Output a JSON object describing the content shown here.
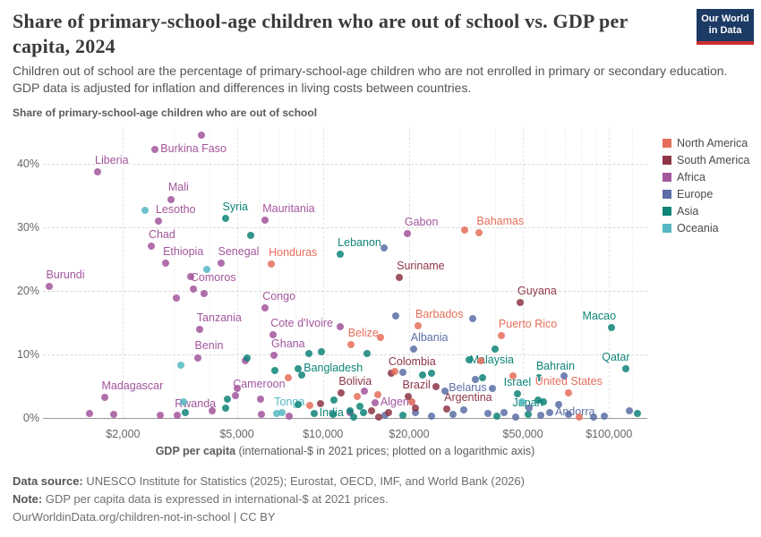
{
  "header": {
    "title": "Share of primary-school-age children who are out of school vs. GDP per capita, 2024",
    "subtitle": "Children out of school are the percentage of primary-school-age children who are not enrolled in primary or secondary education. GDP data is adjusted for inflation and differences in living costs between countries.",
    "logo": {
      "line1": "Our World",
      "line2": "in Data",
      "bg": "#1b3a64",
      "bar": "#cc2e2e"
    }
  },
  "footer": {
    "source_label": "Data source:",
    "source_text": " UNESCO Institute for Statistics (2025); Eurostat, OECD, IMF, and World Bank (2026)",
    "note_label": "Note:",
    "note_text": " GDP per capita data is expressed in international-$ at 2021 prices.",
    "url_line": "OurWorldinData.org/children-not-in-school | CC BY"
  },
  "chart_data": {
    "type": "scatter",
    "title": "Share of primary-school-age children who are out of school vs. GDP per capita, 2024",
    "ylabel": "Share of primary-school-age children who are out of school",
    "xlabel_bold": "GDP per capita",
    "xlabel_rest": " (international-$ in 2021 prices; plotted on a logarithmic axis)",
    "x_scale": "log",
    "x_domain": [
      1050,
      136000
    ],
    "y_domain": [
      0,
      45.3
    ],
    "grid": true,
    "legend_position": "right",
    "x_ticks": [
      {
        "value": 2000,
        "label": "$2,000"
      },
      {
        "value": 5000,
        "label": "$5,000"
      },
      {
        "value": 10000,
        "label": "$10,000"
      },
      {
        "value": 20000,
        "label": "$20,000"
      },
      {
        "value": 50000,
        "label": "$50,000"
      },
      {
        "value": 100000,
        "label": "$100,000"
      }
    ],
    "x_minor": [
      3000,
      4000,
      6000,
      7000,
      8000,
      9000,
      30000,
      40000,
      60000,
      70000,
      80000,
      90000,
      120000
    ],
    "y_ticks": [
      {
        "value": 0,
        "label": "0%"
      },
      {
        "value": 10,
        "label": "10%"
      },
      {
        "value": 20,
        "label": "20%"
      },
      {
        "value": 30,
        "label": "30%"
      },
      {
        "value": 40,
        "label": "40%"
      }
    ],
    "continent_colors": {
      "North America": "#e56e5a",
      "South America": "#8d3646",
      "Africa": "#a2559c",
      "Europe": "#5b6ea6",
      "Asia": "#0e8478",
      "Oceania": "#55b8c2"
    },
    "legend": [
      {
        "label": "North America"
      },
      {
        "label": "South America"
      },
      {
        "label": "Africa"
      },
      {
        "label": "Europe"
      },
      {
        "label": "Asia"
      },
      {
        "label": "Oceania"
      }
    ],
    "points": [
      {
        "name": "Burkina Faso",
        "continent": "Africa",
        "gdp": 2590,
        "share": 42.2,
        "lp": "right"
      },
      {
        "name": "Liberia",
        "continent": "Africa",
        "gdp": 1630,
        "share": 38.7,
        "lp": "above-right"
      },
      {
        "name": "Mali",
        "continent": "Africa",
        "gdp": 2940,
        "share": 34.4,
        "lp": "above-right"
      },
      {
        "name": "Lesotho",
        "continent": "Africa",
        "gdp": 2660,
        "share": 30.9,
        "lp": "above-right"
      },
      {
        "name": "Syria",
        "continent": "Asia",
        "gdp": 4550,
        "share": 31.4,
        "lp": "above-right"
      },
      {
        "name": "Mauritania",
        "continent": "Africa",
        "gdp": 6280,
        "share": 31.1,
        "lp": "above-right"
      },
      {
        "name": "Chad",
        "continent": "Africa",
        "gdp": 2510,
        "share": 27.0,
        "lp": "above-right"
      },
      {
        "name": "Ethiopia",
        "continent": "Africa",
        "gdp": 2820,
        "share": 24.3,
        "lp": "above-right"
      },
      {
        "name": "Senegal",
        "continent": "Africa",
        "gdp": 4390,
        "share": 24.3,
        "lp": "above-right"
      },
      {
        "name": "Honduras",
        "continent": "North America",
        "gdp": 6600,
        "share": 24.2,
        "lp": "above-right"
      },
      {
        "name": "Lebanon",
        "continent": "Asia",
        "gdp": 11500,
        "share": 25.7,
        "lp": "above-right"
      },
      {
        "name": "Gabon",
        "continent": "Africa",
        "gdp": 19700,
        "share": 29.0,
        "lp": "above-right"
      },
      {
        "name": "Bahamas",
        "continent": "North America",
        "gdp": 35200,
        "share": 29.1,
        "lp": "above-right"
      },
      {
        "name": "Burundi",
        "continent": "Africa",
        "gdp": 1100,
        "share": 20.7,
        "lp": "above-right"
      },
      {
        "name": "Comoros",
        "continent": "Africa",
        "gdp": 3520,
        "share": 20.2,
        "lp": "above-right"
      },
      {
        "name": "Congo",
        "continent": "Africa",
        "gdp": 6280,
        "share": 17.3,
        "lp": "above-right"
      },
      {
        "name": "Suriname",
        "continent": "South America",
        "gdp": 18500,
        "share": 22.1,
        "lp": "above-right"
      },
      {
        "name": "Guyana",
        "continent": "South America",
        "gdp": 48900,
        "share": 18.1,
        "lp": "above-right"
      },
      {
        "name": "Tanzania",
        "continent": "Africa",
        "gdp": 3700,
        "share": 13.9,
        "lp": "above-right"
      },
      {
        "name": "Cote d'Ivoire",
        "continent": "Africa",
        "gdp": 6700,
        "share": 13.1,
        "lp": "above-right"
      },
      {
        "name": "Barbados",
        "continent": "North America",
        "gdp": 21500,
        "share": 14.5,
        "lp": "above-right"
      },
      {
        "name": "Puerto Rico",
        "continent": "North America",
        "gdp": 42000,
        "share": 12.9,
        "lp": "above-right"
      },
      {
        "name": "Macao",
        "continent": "Asia",
        "gdp": 102000,
        "share": 14.2,
        "lp": "above-left"
      },
      {
        "name": "Benin",
        "continent": "Africa",
        "gdp": 3640,
        "share": 9.5,
        "lp": "above-right"
      },
      {
        "name": "Ghana",
        "continent": "Africa",
        "gdp": 6740,
        "share": 9.8,
        "lp": "above-right"
      },
      {
        "name": "Belize",
        "continent": "North America",
        "gdp": 12500,
        "share": 11.6,
        "lp": "above-right"
      },
      {
        "name": "Albania",
        "continent": "Europe",
        "gdp": 20700,
        "share": 10.9,
        "lp": "above-right"
      },
      {
        "name": "Malaysia",
        "continent": "Asia",
        "gdp": 40000,
        "share": 10.9,
        "lp": "below-left"
      },
      {
        "name": "Bahrain",
        "continent": "Asia",
        "gdp": 56800,
        "share": 6.4,
        "lp": "above-right"
      },
      {
        "name": "Qatar",
        "continent": "Asia",
        "gdp": 114000,
        "share": 7.7,
        "lp": "above-left"
      },
      {
        "name": "Bangladesh",
        "continent": "Asia",
        "gdp": 8200,
        "share": 7.7,
        "lp": "right"
      },
      {
        "name": "Colombia",
        "continent": "South America",
        "gdp": 17300,
        "share": 7.0,
        "lp": "above-right"
      },
      {
        "name": "Madagascar",
        "continent": "Africa",
        "gdp": 1720,
        "share": 3.2,
        "lp": "above-right"
      },
      {
        "name": "Cameroon",
        "continent": "Africa",
        "gdp": 4950,
        "share": 3.5,
        "lp": "above-right"
      },
      {
        "name": "Bolivia",
        "continent": "South America",
        "gdp": 11600,
        "share": 4.0,
        "lp": "above-right"
      },
      {
        "name": "Brazil",
        "continent": "South America",
        "gdp": 24800,
        "share": 5.0,
        "lp": "left"
      },
      {
        "name": "Belarus",
        "continent": "Europe",
        "gdp": 39000,
        "share": 4.7,
        "lp": "left"
      },
      {
        "name": "Israel",
        "continent": "Asia",
        "gdp": 47800,
        "share": 3.8,
        "lp": "above"
      },
      {
        "name": "United States",
        "continent": "North America",
        "gdp": 72300,
        "share": 3.9,
        "lp": "above"
      },
      {
        "name": "Rwanda",
        "continent": "Africa",
        "gdp": 3100,
        "share": 0.4,
        "lp": "above-right"
      },
      {
        "name": "Tonga",
        "continent": "Oceania",
        "gdp": 6900,
        "share": 0.7,
        "lp": "above-right"
      },
      {
        "name": "India",
        "continent": "Asia",
        "gdp": 9300,
        "share": 0.7,
        "lp": "right"
      },
      {
        "name": "Algeria",
        "continent": "Africa",
        "gdp": 15200,
        "share": 2.4,
        "lp": "right"
      },
      {
        "name": "Argentina",
        "continent": "South America",
        "gdp": 27100,
        "share": 1.4,
        "lp": "above-right"
      },
      {
        "name": "Japan",
        "continent": "Asia",
        "gdp": 52000,
        "share": 0.6,
        "lp": "above"
      },
      {
        "name": "Andorra",
        "continent": "Europe",
        "gdp": 62000,
        "share": 0.8,
        "lp": "right"
      },
      {
        "continent": "Africa",
        "gdp": 3760,
        "share": 44.5
      },
      {
        "continent": "Africa",
        "gdp": 3850,
        "share": 19.5
      },
      {
        "continent": "Africa",
        "gdp": 3070,
        "share": 18.8
      },
      {
        "continent": "Africa",
        "gdp": 3440,
        "share": 22.3
      },
      {
        "continent": "Africa",
        "gdp": 11500,
        "share": 14.3
      },
      {
        "continent": "Africa",
        "gdp": 5330,
        "share": 9.0
      },
      {
        "continent": "Africa",
        "gdp": 6060,
        "share": 2.9
      },
      {
        "continent": "Africa",
        "gdp": 13900,
        "share": 4.2
      },
      {
        "continent": "Africa",
        "gdp": 1530,
        "share": 0.7
      },
      {
        "continent": "Africa",
        "gdp": 6100,
        "share": 0.5
      },
      {
        "continent": "Africa",
        "gdp": 2690,
        "share": 0.4
      },
      {
        "continent": "Africa",
        "gdp": 12400,
        "share": 0.9
      },
      {
        "continent": "Africa",
        "gdp": 1850,
        "share": 0.6
      },
      {
        "continent": "Africa",
        "gdp": 4100,
        "share": 1.1
      },
      {
        "continent": "Africa",
        "gdp": 7600,
        "share": 0.3
      },
      {
        "continent": "Africa",
        "gdp": 5000,
        "share": 4.6
      },
      {
        "continent": "Asia",
        "gdp": 5570,
        "share": 28.7
      },
      {
        "continent": "Asia",
        "gdp": 5430,
        "share": 9.5
      },
      {
        "continent": "Asia",
        "gdp": 9850,
        "share": 10.4
      },
      {
        "continent": "Asia",
        "gdp": 8900,
        "share": 10.1
      },
      {
        "continent": "Asia",
        "gdp": 14300,
        "share": 10.1
      },
      {
        "continent": "Asia",
        "gdp": 6800,
        "share": 7.5
      },
      {
        "continent": "Asia",
        "gdp": 8440,
        "share": 6.7
      },
      {
        "continent": "Asia",
        "gdp": 22300,
        "share": 6.7
      },
      {
        "continent": "Asia",
        "gdp": 23900,
        "share": 7.0
      },
      {
        "continent": "Asia",
        "gdp": 36000,
        "share": 6.4
      },
      {
        "continent": "Asia",
        "gdp": 32500,
        "share": 9.1
      },
      {
        "continent": "Asia",
        "gdp": 56500,
        "share": 2.8
      },
      {
        "continent": "Asia",
        "gdp": 59000,
        "share": 2.5
      },
      {
        "continent": "Asia",
        "gdp": 4560,
        "share": 1.6
      },
      {
        "continent": "Asia",
        "gdp": 4620,
        "share": 2.9
      },
      {
        "continent": "Asia",
        "gdp": 8180,
        "share": 2.1
      },
      {
        "continent": "Asia",
        "gdp": 10900,
        "share": 2.8
      },
      {
        "continent": "Asia",
        "gdp": 13500,
        "share": 1.9
      },
      {
        "continent": "Asia",
        "gdp": 10800,
        "share": 0.5
      },
      {
        "continent": "Asia",
        "gdp": 13800,
        "share": 0.9
      },
      {
        "continent": "Asia",
        "gdp": 12800,
        "share": 0.2
      },
      {
        "continent": "Asia",
        "gdp": 12400,
        "share": 1.2
      },
      {
        "continent": "Asia",
        "gdp": 40600,
        "share": 0.3
      },
      {
        "continent": "Asia",
        "gdp": 126000,
        "share": 0.7
      },
      {
        "continent": "Asia",
        "gdp": 19000,
        "share": 0.4
      },
      {
        "continent": "Asia",
        "gdp": 3300,
        "share": 0.8
      },
      {
        "continent": "Europe",
        "gdp": 16400,
        "share": 26.7
      },
      {
        "continent": "Europe",
        "gdp": 17900,
        "share": 16.0
      },
      {
        "continent": "Europe",
        "gdp": 33400,
        "share": 15.6
      },
      {
        "continent": "Europe",
        "gdp": 34200,
        "share": 6.0
      },
      {
        "continent": "Europe",
        "gdp": 26600,
        "share": 4.2
      },
      {
        "continent": "Europe",
        "gdp": 69800,
        "share": 6.6
      },
      {
        "continent": "Europe",
        "gdp": 66400,
        "share": 2.1
      },
      {
        "continent": "Europe",
        "gdp": 37600,
        "share": 0.7
      },
      {
        "continent": "Europe",
        "gdp": 118000,
        "share": 1.1
      },
      {
        "continent": "Europe",
        "gdp": 88500,
        "share": 0.2
      },
      {
        "continent": "Europe",
        "gdp": 21000,
        "share": 0.9
      },
      {
        "continent": "Europe",
        "gdp": 19000,
        "share": 7.2
      },
      {
        "continent": "Europe",
        "gdp": 16500,
        "share": 0.4
      },
      {
        "continent": "Europe",
        "gdp": 24000,
        "share": 0.3
      },
      {
        "continent": "Europe",
        "gdp": 28500,
        "share": 0.6
      },
      {
        "continent": "Europe",
        "gdp": 31000,
        "share": 1.3
      },
      {
        "continent": "Europe",
        "gdp": 43000,
        "share": 0.9
      },
      {
        "continent": "Europe",
        "gdp": 47000,
        "share": 0.2
      },
      {
        "continent": "Europe",
        "gdp": 52500,
        "share": 1.5
      },
      {
        "continent": "Europe",
        "gdp": 57500,
        "share": 0.4
      },
      {
        "continent": "Europe",
        "gdp": 72000,
        "share": 0.5
      },
      {
        "continent": "Europe",
        "gdp": 96000,
        "share": 0.3
      },
      {
        "continent": "North America",
        "gdp": 31200,
        "share": 29.5
      },
      {
        "continent": "North America",
        "gdp": 15900,
        "share": 12.6
      },
      {
        "continent": "North America",
        "gdp": 7560,
        "share": 6.4
      },
      {
        "continent": "North America",
        "gdp": 15500,
        "share": 3.6
      },
      {
        "continent": "North America",
        "gdp": 17800,
        "share": 7.3
      },
      {
        "continent": "North America",
        "gdp": 35700,
        "share": 9.0
      },
      {
        "continent": "North America",
        "gdp": 46100,
        "share": 6.6
      },
      {
        "continent": "North America",
        "gdp": 78900,
        "share": 0.2
      },
      {
        "continent": "North America",
        "gdp": 9000,
        "share": 2.0
      },
      {
        "continent": "North America",
        "gdp": 20500,
        "share": 2.6
      },
      {
        "continent": "North America",
        "gdp": 13200,
        "share": 3.4
      },
      {
        "continent": "South America",
        "gdp": 15600,
        "share": 0.1
      },
      {
        "continent": "South America",
        "gdp": 14800,
        "share": 1.2
      },
      {
        "continent": "South America",
        "gdp": 21000,
        "share": 1.6
      },
      {
        "continent": "South America",
        "gdp": 17000,
        "share": 0.8
      },
      {
        "continent": "South America",
        "gdp": 9800,
        "share": 2.2
      },
      {
        "continent": "South America",
        "gdp": 19800,
        "share": 3.4
      },
      {
        "continent": "Oceania",
        "gdp": 2390,
        "share": 32.6
      },
      {
        "continent": "Oceania",
        "gdp": 3930,
        "share": 23.3
      },
      {
        "continent": "Oceania",
        "gdp": 3190,
        "share": 8.3
      },
      {
        "continent": "Oceania",
        "gdp": 3250,
        "share": 2.6
      },
      {
        "continent": "Oceania",
        "gdp": 49500,
        "share": 2.6
      },
      {
        "continent": "Oceania",
        "gdp": 7200,
        "share": 0.9
      }
    ]
  }
}
